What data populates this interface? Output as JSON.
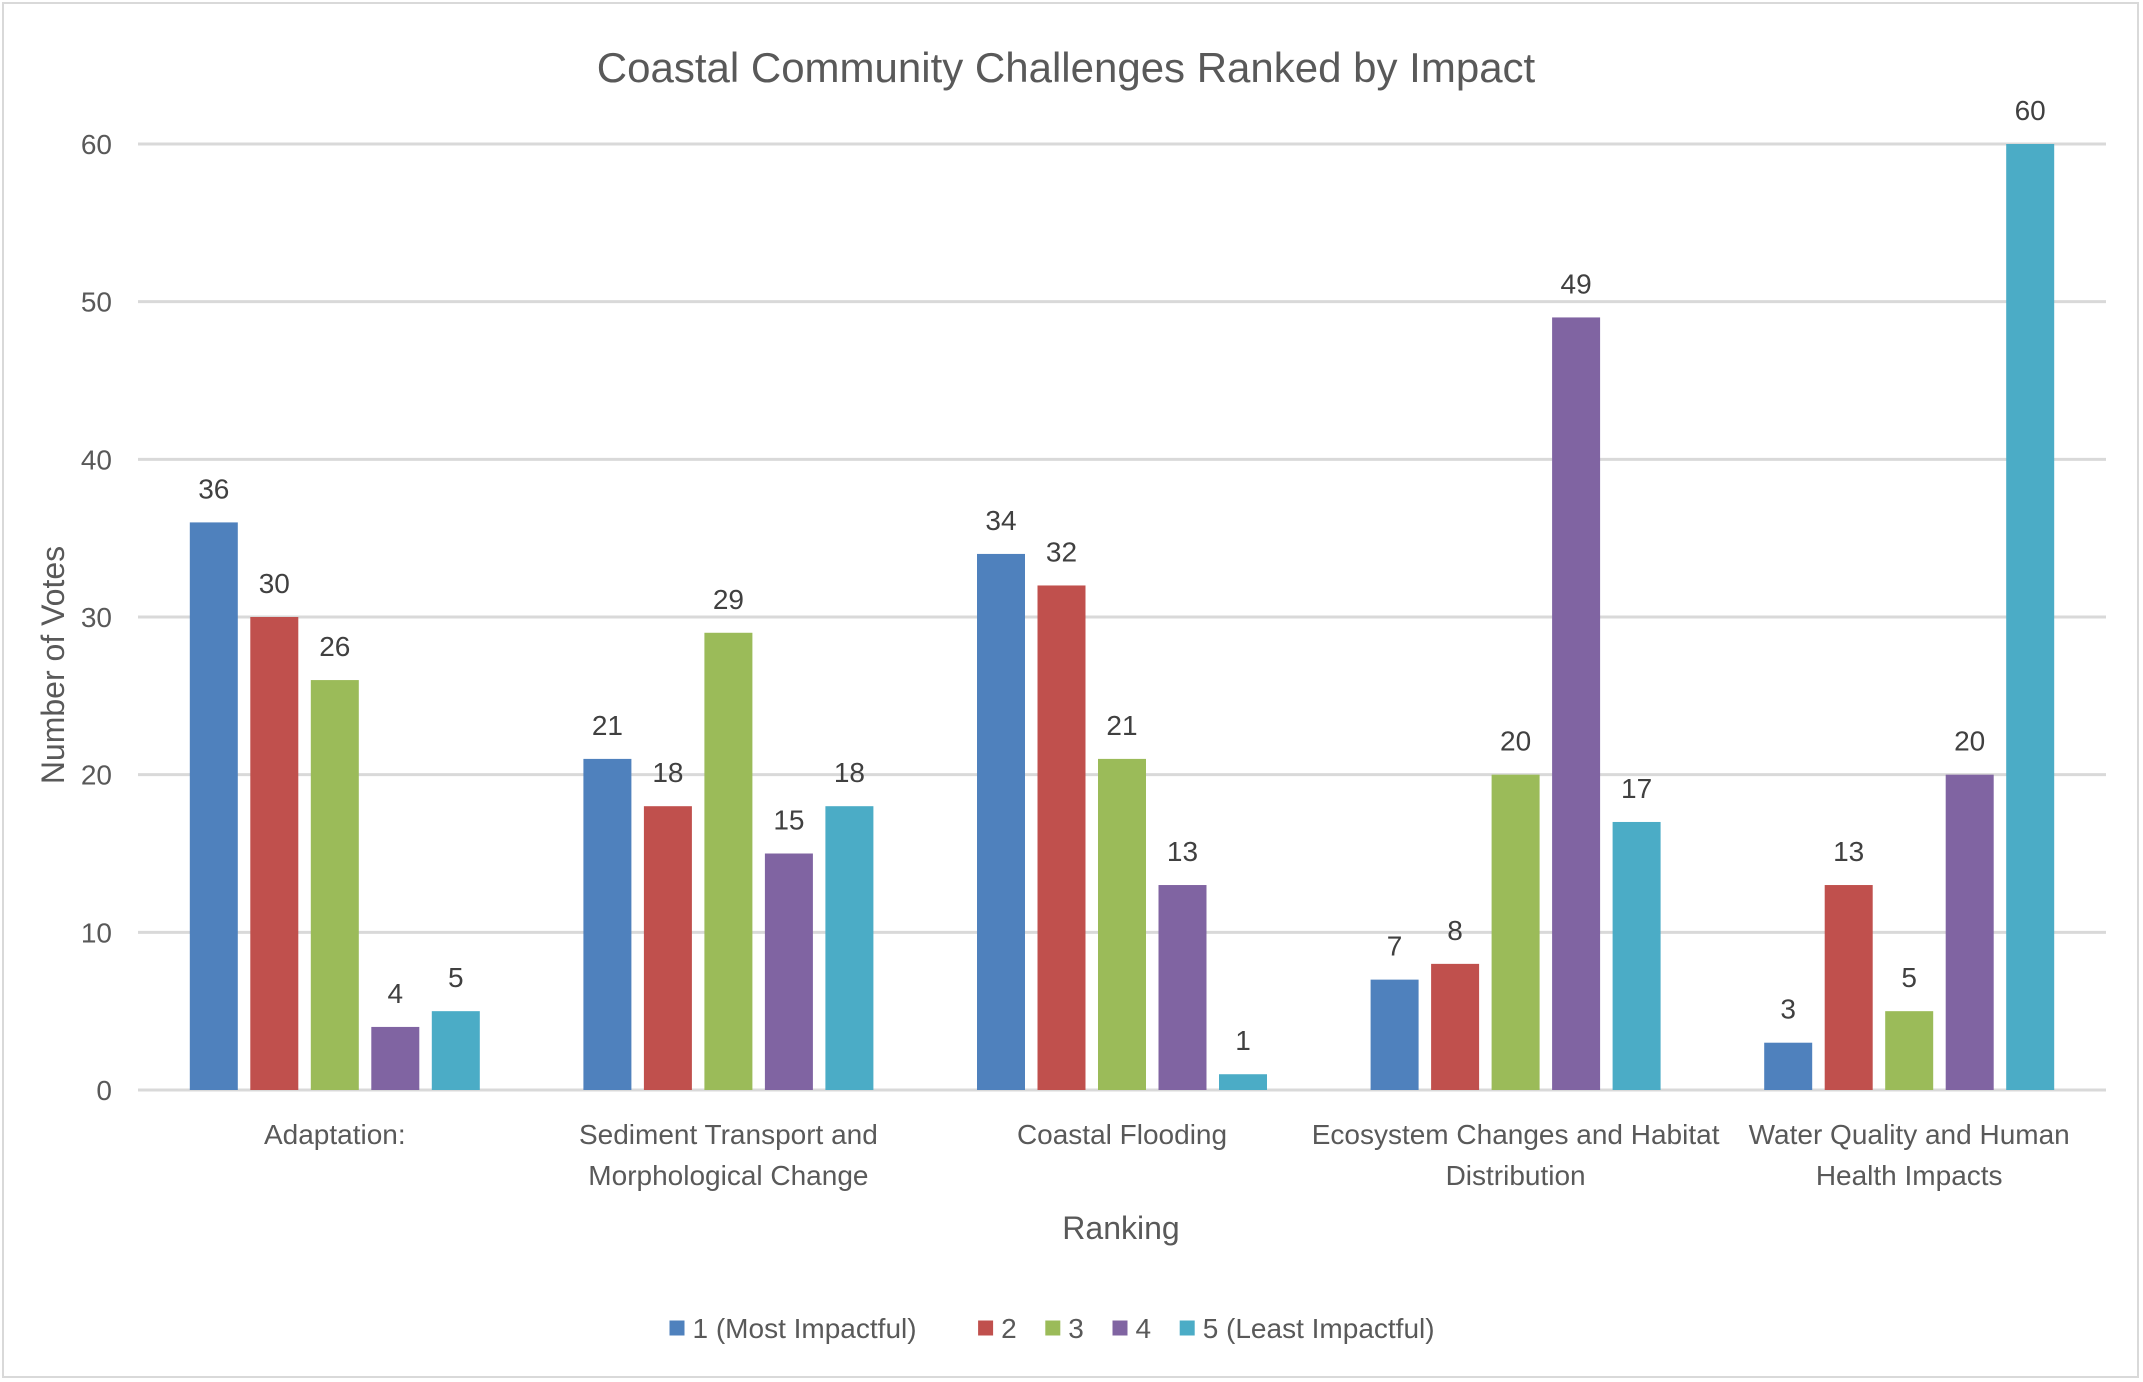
{
  "chart_data": {
    "type": "bar",
    "title": "Coastal Community Challenges Ranked by Impact",
    "xlabel": "Ranking",
    "ylabel": "Number of Votes",
    "ylim": [
      0,
      60
    ],
    "yticks": [
      0,
      10,
      20,
      30,
      40,
      50,
      60
    ],
    "grid": true,
    "legend_position": "bottom",
    "categories": [
      "Adaptation:",
      "Sediment Transport and Morphological Change",
      "Coastal Flooding",
      "Ecosystem Changes and Habitat Distribution",
      "Water Quality and Human Health Impacts"
    ],
    "category_lines": [
      [
        "Adaptation:"
      ],
      [
        "Sediment Transport and",
        "Morphological Change"
      ],
      [
        "Coastal Flooding"
      ],
      [
        "Ecosystem Changes and Habitat",
        "Distribution"
      ],
      [
        "Water Quality and Human",
        "Health Impacts"
      ]
    ],
    "series": [
      {
        "name": "1 (Most Impactful)",
        "color": "#4f81bd",
        "values": [
          36,
          21,
          34,
          7,
          3
        ]
      },
      {
        "name": "2",
        "color": "#c0504d",
        "values": [
          30,
          18,
          32,
          8,
          13
        ]
      },
      {
        "name": "3",
        "color": "#9bbb59",
        "values": [
          26,
          29,
          21,
          20,
          5
        ]
      },
      {
        "name": "4",
        "color": "#8064a2",
        "values": [
          4,
          15,
          13,
          49,
          20
        ]
      },
      {
        "name": "5 (Least Impactful)",
        "color": "#4bacc6",
        "values": [
          5,
          18,
          1,
          17,
          60
        ]
      }
    ]
  }
}
